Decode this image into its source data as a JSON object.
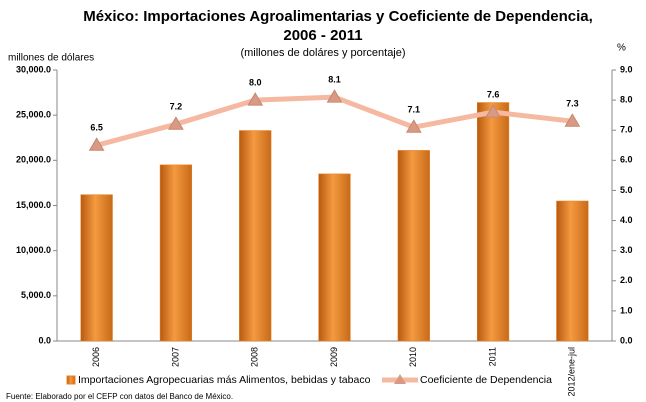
{
  "chart_data": {
    "type": "bar-line",
    "title": [
      "México: Importaciones Agroalimentarias y Coeficiente de Dependencia,",
      "2006 - 2011"
    ],
    "subtitle": "(millones de doláres y porcentaje)",
    "y_label": "millones de dólares",
    "y2_label": "%",
    "categories": [
      "2006",
      "2007",
      "2008",
      "2009",
      "2010",
      "2011",
      "2012/ene-jul"
    ],
    "series": [
      {
        "name": "Importaciones  Agropecuarias  más Alimentos, bebidas y tabaco",
        "type": "bar",
        "color": "#e8801f",
        "values": [
          16200,
          19500,
          23300,
          18500,
          21100,
          26400,
          15500
        ]
      },
      {
        "name": "Coeficiente de Dependencia",
        "type": "line",
        "axis": "y2",
        "color": "#f5b8a0",
        "values": [
          6.5,
          7.2,
          8.0,
          8.1,
          7.1,
          7.6,
          7.3
        ],
        "value_labels": [
          "6.5",
          "7.2",
          "8.0",
          "8.1",
          "7.1",
          "7.6",
          "7.3"
        ]
      }
    ],
    "ylim": [
      0,
      30000
    ],
    "yticks": [
      {
        "value": 0,
        "label": "0.0"
      },
      {
        "value": 5000,
        "label": "5,000.0"
      },
      {
        "value": 10000,
        "label": "10,000.0"
      },
      {
        "value": 15000,
        "label": "15,000.0"
      },
      {
        "value": 20000,
        "label": "20,000.0"
      },
      {
        "value": 25000,
        "label": "25,000.0"
      },
      {
        "value": 30000,
        "label": "30,000.0"
      }
    ],
    "y2lim": [
      0,
      9
    ],
    "y2ticks": [
      {
        "value": 0,
        "label": "0.0"
      },
      {
        "value": 1,
        "label": "1.0"
      },
      {
        "value": 2,
        "label": "2.0"
      },
      {
        "value": 3,
        "label": "3.0"
      },
      {
        "value": 4,
        "label": "4.0"
      },
      {
        "value": 5,
        "label": "5.0"
      },
      {
        "value": 6,
        "label": "6.0"
      },
      {
        "value": 7,
        "label": "7.0"
      },
      {
        "value": 8,
        "label": "8.0"
      },
      {
        "value": 9,
        "label": "9.0"
      }
    ],
    "source": "Fuente:  Elaborado por el CEFP con datos del Banco de México."
  }
}
